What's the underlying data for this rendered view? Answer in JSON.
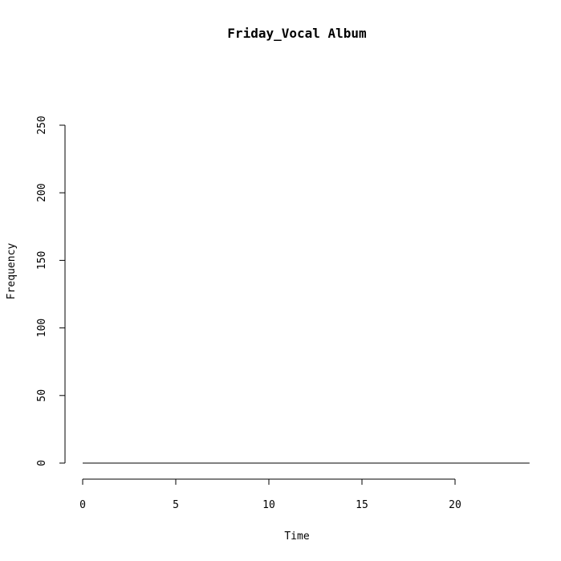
{
  "chart_data": {
    "type": "line",
    "title": "Friday_Vocal Album",
    "xlabel": "Time",
    "ylabel": "Frequency",
    "xlim": [
      0,
      24
    ],
    "ylim": [
      0,
      250
    ],
    "x_ticks": [
      0,
      5,
      10,
      15,
      20
    ],
    "y_ticks": [
      0,
      50,
      100,
      150,
      200,
      250
    ],
    "grid": false,
    "series": [
      {
        "x": [
          0,
          1,
          2,
          3,
          4,
          5,
          6,
          7,
          8,
          9,
          10,
          11,
          12,
          13,
          14,
          15,
          16,
          17,
          18,
          19,
          20,
          21,
          22,
          23,
          24
        ],
        "values": [
          0,
          0,
          0,
          0,
          0,
          0,
          0,
          0,
          0,
          0,
          0,
          0,
          0,
          0,
          0,
          0,
          0,
          0,
          0,
          0,
          0,
          0,
          0,
          0,
          0
        ]
      }
    ],
    "colors": {
      "line": "#000000",
      "axis": "#000000",
      "background": "#ffffff"
    }
  }
}
